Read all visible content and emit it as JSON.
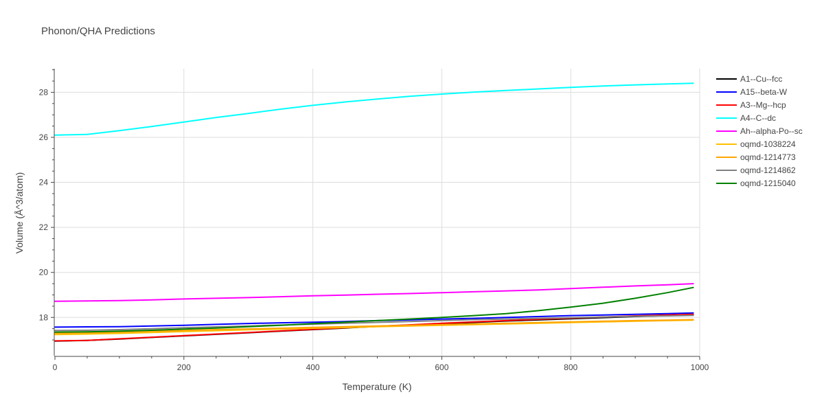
{
  "chart_data": {
    "type": "line",
    "title": "Phonon/QHA Predictions",
    "xlabel": "Temperature (K)",
    "ylabel": "Volume (Å^3/atom)",
    "xlim": [
      0,
      1000
    ],
    "ylim": [
      16.3,
      29.05
    ],
    "xticks": [
      0,
      200,
      400,
      600,
      800,
      1000
    ],
    "yticks": [
      18,
      20,
      22,
      24,
      26,
      28
    ],
    "grid": true,
    "legend_position": "right",
    "x": [
      0,
      50,
      100,
      150,
      200,
      250,
      300,
      350,
      400,
      450,
      500,
      550,
      600,
      650,
      700,
      750,
      800,
      850,
      900,
      950,
      990
    ],
    "series": [
      {
        "name": "A1--Cu--fcc",
        "color": "#000000",
        "values": [
          16.95,
          16.98,
          17.04,
          17.11,
          17.18,
          17.25,
          17.32,
          17.39,
          17.46,
          17.53,
          17.6,
          17.66,
          17.72,
          17.78,
          17.84,
          17.89,
          17.94,
          17.99,
          18.04,
          18.08,
          18.11
        ]
      },
      {
        "name": "A15--beta-W",
        "color": "#0000ff",
        "values": [
          17.57,
          17.58,
          17.59,
          17.62,
          17.65,
          17.69,
          17.73,
          17.76,
          17.79,
          17.82,
          17.86,
          17.89,
          17.93,
          17.96,
          18.0,
          18.04,
          18.08,
          18.11,
          18.14,
          18.17,
          18.2
        ]
      },
      {
        "name": "A3--Mg--hcp",
        "color": "#ff0000",
        "values": [
          16.96,
          16.98,
          17.05,
          17.12,
          17.19,
          17.26,
          17.33,
          17.4,
          17.47,
          17.54,
          17.61,
          17.67,
          17.74,
          17.8,
          17.86,
          17.92,
          17.97,
          18.02,
          18.07,
          18.11,
          18.14
        ]
      },
      {
        "name": "A4--C--dc",
        "color": "#00ffff",
        "values": [
          26.1,
          26.13,
          26.3,
          26.48,
          26.68,
          26.88,
          27.06,
          27.25,
          27.42,
          27.57,
          27.7,
          27.82,
          27.92,
          28.01,
          28.08,
          28.15,
          28.22,
          28.28,
          28.33,
          28.37,
          28.4
        ]
      },
      {
        "name": "Ah--alpha-Po--sc",
        "color": "#ff00ff",
        "values": [
          18.72,
          18.73,
          18.75,
          18.78,
          18.82,
          18.85,
          18.88,
          18.92,
          18.96,
          18.99,
          19.03,
          19.06,
          19.1,
          19.14,
          19.18,
          19.22,
          19.28,
          19.34,
          19.4,
          19.45,
          19.5
        ]
      },
      {
        "name": "oqmd-1038224",
        "color": "#ffc000",
        "values": [
          17.24,
          17.26,
          17.29,
          17.33,
          17.37,
          17.41,
          17.45,
          17.48,
          17.52,
          17.55,
          17.59,
          17.62,
          17.65,
          17.68,
          17.71,
          17.74,
          17.77,
          17.8,
          17.83,
          17.86,
          17.88
        ]
      },
      {
        "name": "oqmd-1214773",
        "color": "#ffa500",
        "values": [
          17.3,
          17.32,
          17.35,
          17.39,
          17.42,
          17.46,
          17.49,
          17.52,
          17.56,
          17.59,
          17.62,
          17.65,
          17.68,
          17.71,
          17.74,
          17.77,
          17.8,
          17.83,
          17.86,
          17.88,
          17.9
        ]
      },
      {
        "name": "oqmd-1214862",
        "color": "#808080",
        "values": [
          17.42,
          17.43,
          17.46,
          17.5,
          17.54,
          17.58,
          17.62,
          17.66,
          17.7,
          17.74,
          17.78,
          17.82,
          17.86,
          17.9,
          17.93,
          17.96,
          17.99,
          18.02,
          18.05,
          18.07,
          18.09
        ]
      },
      {
        "name": "oqmd-1215040",
        "color": "#008000",
        "values": [
          17.35,
          17.36,
          17.39,
          17.43,
          17.48,
          17.53,
          17.59,
          17.65,
          17.72,
          17.79,
          17.86,
          17.93,
          18.0,
          18.08,
          18.17,
          18.3,
          18.46,
          18.63,
          18.85,
          19.1,
          19.33
        ]
      }
    ]
  }
}
